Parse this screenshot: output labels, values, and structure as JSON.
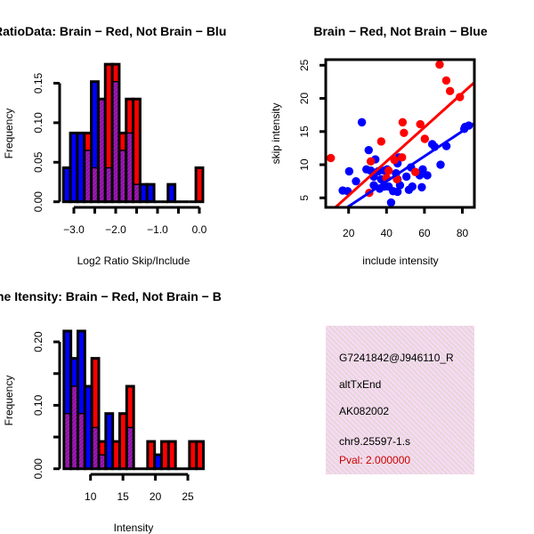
{
  "colors": {
    "brain": "#ff0000",
    "not_brain": "#0000ff",
    "overlap": "#a01ab4",
    "pval": "#cc0000"
  },
  "chart_data": [
    {
      "type": "bar",
      "subtype": "overlaid-histogram",
      "title": "RatioData: Brain − Red, Not Brain − Blu",
      "xlabel": "Log2 Ratio Skip/Include",
      "ylabel": "Frequency",
      "xlim": [
        -3.25,
        0.1
      ],
      "ylim": [
        0,
        0.15
      ],
      "bin_start": -3.25,
      "bin_width": 0.1667,
      "x_ticks": [
        -3.0,
        -2.5,
        -2.0,
        -1.5,
        -1.0,
        -0.5,
        0.0
      ],
      "x_tick_labels": [
        "−3.0",
        "",
        "−2.0",
        "",
        "−1.0",
        "",
        "0.0"
      ],
      "y_ticks": [
        0,
        0.05,
        0.1,
        0.15
      ],
      "y_tick_labels": [
        "0.00",
        "0.05",
        "0.10",
        "0.15"
      ],
      "series": [
        {
          "name": "Brain",
          "color": "red",
          "values": [
            0,
            0,
            0,
            0.087,
            0.043,
            0.13,
            0.174,
            0.174,
            0.087,
            0.13,
            0.13,
            0,
            0,
            0,
            0,
            0,
            0,
            0,
            0,
            0.043
          ]
        },
        {
          "name": "Not Brain",
          "color": "blue",
          "values": [
            0.043,
            0.087,
            0.087,
            0.065,
            0.152,
            0.13,
            0.043,
            0.152,
            0.065,
            0.087,
            0.022,
            0.022,
            0.022,
            0,
            0,
            0.022,
            0,
            0,
            0,
            0
          ]
        }
      ]
    },
    {
      "type": "scatter",
      "title": "Brain − Red, Not Brain − Blue",
      "xlabel": "include intensity",
      "ylabel": "skip intensity",
      "xlim": [
        7.9,
        86.3
      ],
      "ylim": [
        3.56,
        25.85
      ],
      "x_ticks": [
        20,
        40,
        60,
        80
      ],
      "x_tick_labels": [
        "20",
        "40",
        "60",
        "80"
      ],
      "y_ticks": [
        5,
        10,
        15,
        20,
        25
      ],
      "y_tick_labels": [
        "5",
        "10",
        "15",
        "20",
        "25"
      ],
      "series": [
        {
          "name": "Brain",
          "color": "red",
          "points": [
            [
              10.6,
              11.0
            ],
            [
              37.2,
              13.5
            ],
            [
              48.5,
              16.4
            ],
            [
              49.2,
              14.8
            ],
            [
              57.8,
              16.1
            ],
            [
              60.2,
              13.9
            ],
            [
              68.0,
              25.1
            ],
            [
              71.5,
              22.7
            ],
            [
              73.5,
              21.1
            ],
            [
              78.7,
              20.2
            ],
            [
              31.7,
              10.5
            ],
            [
              41.1,
              9.1
            ],
            [
              44.2,
              10.7
            ],
            [
              48.2,
              11.1
            ],
            [
              30.9,
              5.75
            ],
            [
              55.2,
              8.9
            ],
            [
              45.5,
              7.8
            ],
            [
              40,
              8
            ]
          ],
          "fit": {
            "slope": 0.257,
            "intercept": 0.22
          }
        },
        {
          "name": "Not Brain",
          "color": "blue",
          "points": [
            [
              27.0,
              16.4
            ],
            [
              30.6,
              12.2
            ],
            [
              34.1,
              10.8
            ],
            [
              20.3,
              9.0
            ],
            [
              23.9,
              7.5
            ],
            [
              16.9,
              6.1
            ],
            [
              19.5,
              6.0
            ],
            [
              29.4,
              9.3
            ],
            [
              31.7,
              9.1
            ],
            [
              35.6,
              9.0
            ],
            [
              38.8,
              9.1
            ],
            [
              40.3,
              9.3
            ],
            [
              37.2,
              7.8
            ],
            [
              36.4,
              6.4
            ],
            [
              41.1,
              6.7
            ],
            [
              42.4,
              4.3
            ],
            [
              43.5,
              6.0
            ],
            [
              45.8,
              5.9
            ],
            [
              45.0,
              8.7
            ],
            [
              45.8,
              7.8
            ],
            [
              47.1,
              6.9
            ],
            [
              46.6,
              11.1
            ],
            [
              45.8,
              10.2
            ],
            [
              51.8,
              6.2
            ],
            [
              53.6,
              6.7
            ],
            [
              52.9,
              9.6
            ],
            [
              59.1,
              9.3
            ],
            [
              58.6,
              6.6
            ],
            [
              57.5,
              8.4
            ],
            [
              61.5,
              8.4
            ],
            [
              64.1,
              13.1
            ],
            [
              65.4,
              12.7
            ],
            [
              68.5,
              10.0
            ],
            [
              71.6,
              12.8
            ],
            [
              81.0,
              15.4
            ],
            [
              81.5,
              15.7
            ],
            [
              83.4,
              15.9
            ],
            [
              33.3,
              6.9
            ],
            [
              38.8,
              6.7
            ],
            [
              50.5,
              8.2
            ],
            [
              33.3,
              8.2
            ]
          ],
          "fit": {
            "slope": 0.189,
            "intercept": -0.07
          }
        }
      ]
    },
    {
      "type": "bar",
      "subtype": "overlaid-histogram",
      "title": "ne Itensity: Brain − Red, Not Brain − B",
      "xlabel": "Intensity",
      "ylabel": "Frequency",
      "xlim": [
        5.9,
        27.5
      ],
      "ylim": [
        0,
        0.22
      ],
      "bin_start": 5.9,
      "bin_width": 1.075,
      "x_ticks": [
        10,
        15,
        20,
        25
      ],
      "x_tick_labels": [
        "10",
        "15",
        "20",
        "25"
      ],
      "y_ticks": [
        0,
        0.05,
        0.1,
        0.15,
        0.2
      ],
      "y_tick_labels": [
        "0.00",
        "",
        "0.10",
        "",
        "0.20"
      ],
      "series": [
        {
          "name": "Brain",
          "color": "red",
          "values": [
            0.087,
            0.13,
            0.087,
            0,
            0.174,
            0.043,
            0,
            0.043,
            0.087,
            0.13,
            0,
            0,
            0.043,
            0,
            0.043,
            0.043,
            0,
            0,
            0.043,
            0.043
          ]
        },
        {
          "name": "Not Brain",
          "color": "blue",
          "values": [
            0.217,
            0.174,
            0.217,
            0.13,
            0.065,
            0.022,
            0.087,
            0,
            0,
            0.065,
            0,
            0,
            0,
            0.022,
            0,
            0,
            0,
            0,
            0,
            0
          ]
        }
      ]
    }
  ],
  "info_panel": {
    "lines": [
      "G7241842@J946110_R",
      "altTxEnd",
      "AK082002",
      "chr9.25597-1.s"
    ],
    "pval": "Pval: 2.000000"
  }
}
